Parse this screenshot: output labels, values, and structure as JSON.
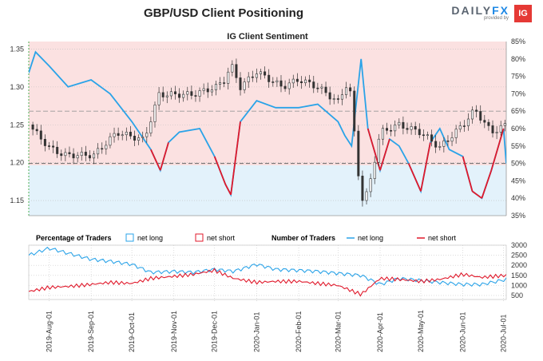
{
  "title": "GBP/USD Client Positioning",
  "logo": {
    "brand_prefix": "DAILY",
    "brand_suffix": "FX",
    "subtitle": "provided by",
    "mark": "IG"
  },
  "colors": {
    "blue": "#2aa3e8",
    "red": "#e0192b",
    "candle": "#333333",
    "long_bg": "#e3f2fb",
    "short_bg": "#fbe1e1"
  },
  "chart_data": [
    {
      "type": "line",
      "title": "IG Client Sentiment",
      "ylabel_left_ticks": [
        "1.35",
        "1.30",
        "1.25",
        "1.20",
        "1.15"
      ],
      "ylim_left": [
        1.13,
        1.36
      ],
      "ylabel_right_ticks": [
        "85%",
        "80%",
        "75%",
        "70%",
        "65%",
        "60%",
        "55%",
        "50%",
        "45%",
        "40%",
        "35%"
      ],
      "ylim_right": [
        35,
        85
      ],
      "x_range": [
        "2019-07-17",
        "2020-07-03"
      ],
      "neutral_line": 50,
      "series": [
        {
          "name": "GBP/USD",
          "dates": [
            "2019-07-17",
            "2019-08-01",
            "2019-08-12",
            "2019-09-03",
            "2019-09-20",
            "2019-10-10",
            "2019-10-21",
            "2019-11-01",
            "2019-11-15",
            "2019-12-02",
            "2019-12-09",
            "2019-12-13",
            "2019-12-20",
            "2020-01-01",
            "2020-01-20",
            "2020-02-01",
            "2020-02-15",
            "2020-03-01",
            "2020-03-09",
            "2020-03-18",
            "2020-03-23",
            "2020-04-01",
            "2020-04-15",
            "2020-05-01",
            "2020-05-15",
            "2020-06-01",
            "2020-06-10",
            "2020-06-22",
            "2020-07-03"
          ],
          "values": [
            1.25,
            1.22,
            1.21,
            1.21,
            1.24,
            1.23,
            1.29,
            1.29,
            1.29,
            1.3,
            1.31,
            1.33,
            1.3,
            1.32,
            1.3,
            1.31,
            1.3,
            1.28,
            1.31,
            1.15,
            1.16,
            1.24,
            1.25,
            1.24,
            1.22,
            1.25,
            1.27,
            1.24,
            1.25
          ]
        },
        {
          "name": "Net long %",
          "dates": [
            "2019-07-17",
            "2019-07-22",
            "2019-08-01",
            "2019-08-15",
            "2019-09-01",
            "2019-09-15",
            "2019-10-01",
            "2019-10-15",
            "2019-10-22",
            "2019-10-28",
            "2019-11-05",
            "2019-11-20",
            "2019-12-01",
            "2019-12-09",
            "2019-12-13",
            "2019-12-20",
            "2020-01-01",
            "2020-01-15",
            "2020-02-01",
            "2020-02-15",
            "2020-03-01",
            "2020-03-06",
            "2020-03-11",
            "2020-03-18",
            "2020-03-23",
            "2020-04-01",
            "2020-04-08",
            "2020-04-15",
            "2020-04-22",
            "2020-05-01",
            "2020-05-08",
            "2020-05-15",
            "2020-05-22",
            "2020-06-01",
            "2020-06-08",
            "2020-06-15",
            "2020-06-22",
            "2020-07-01",
            "2020-07-03"
          ],
          "values": [
            76,
            82,
            78,
            72,
            74,
            70,
            62,
            54,
            48,
            56,
            59,
            60,
            52,
            44,
            41,
            62,
            68,
            66,
            66,
            67,
            62,
            58,
            55,
            80,
            60,
            48,
            57,
            55,
            50,
            42,
            56,
            60,
            54,
            52,
            42,
            40,
            48,
            60,
            50
          ]
        }
      ],
      "marked_short_dates": [
        "2019-10-22",
        "2019-12-13",
        "2020-04-01",
        "2020-05-01",
        "2020-06-08",
        "2020-06-15"
      ]
    },
    {
      "type": "line",
      "title": "Percentage of Traders / Number of Traders",
      "legend": {
        "pct_label": "Percentage of Traders",
        "pct_long": "net long",
        "pct_short": "net short",
        "num_label": "Number of Traders",
        "num_long": "net long",
        "num_short": "net short"
      },
      "ylabel_right_ticks": [
        "3000",
        "2500",
        "2000",
        "1500",
        "1000",
        "500"
      ],
      "ylim_right": [
        300,
        3000
      ],
      "x_ticks": [
        "2019-Aug-01",
        "2019-Sep-01",
        "2019-Oct-01",
        "2019-Nov-01",
        "2019-Dec-01",
        "2020-Jan-01",
        "2020-Feb-01",
        "2020-Mar-01",
        "2020-Apr-01",
        "2020-May-01",
        "2020-Jun-01",
        "2020-Jul-01"
      ],
      "x_tick_dates": [
        "2019-08-01",
        "2019-09-01",
        "2019-10-01",
        "2019-11-01",
        "2019-12-01",
        "2020-01-01",
        "2020-02-01",
        "2020-03-01",
        "2020-04-01",
        "2020-05-01",
        "2020-06-01",
        "2020-07-01"
      ],
      "series": [
        {
          "name": "net long",
          "dates": [
            "2019-07-17",
            "2019-08-01",
            "2019-08-15",
            "2019-09-01",
            "2019-09-15",
            "2019-10-01",
            "2019-10-15",
            "2019-11-01",
            "2019-11-15",
            "2019-12-01",
            "2019-12-15",
            "2020-01-01",
            "2020-01-15",
            "2020-02-01",
            "2020-02-15",
            "2020-03-01",
            "2020-03-18",
            "2020-04-01",
            "2020-04-15",
            "2020-05-01",
            "2020-05-15",
            "2020-06-01",
            "2020-06-15",
            "2020-07-03"
          ],
          "values": [
            2500,
            2850,
            2600,
            2300,
            2200,
            2050,
            1650,
            1700,
            1650,
            1800,
            1700,
            2050,
            1800,
            1750,
            1700,
            1600,
            1500,
            1050,
            1350,
            1250,
            1150,
            1050,
            1050,
            1300
          ]
        },
        {
          "name": "net short",
          "dates": [
            "2019-07-17",
            "2019-08-01",
            "2019-08-15",
            "2019-09-01",
            "2019-09-15",
            "2019-10-01",
            "2019-10-15",
            "2019-11-01",
            "2019-11-15",
            "2019-12-01",
            "2019-12-15",
            "2020-01-01",
            "2020-01-15",
            "2020-02-01",
            "2020-02-15",
            "2020-03-01",
            "2020-03-18",
            "2020-04-01",
            "2020-04-15",
            "2020-05-01",
            "2020-05-15",
            "2020-06-01",
            "2020-06-15",
            "2020-07-03"
          ],
          "values": [
            700,
            900,
            950,
            1050,
            1150,
            1100,
            1350,
            1450,
            1550,
            1750,
            1350,
            1150,
            1200,
            1200,
            1100,
            1000,
            550,
            1350,
            1300,
            1200,
            1300,
            1550,
            1400,
            1500
          ]
        }
      ]
    }
  ]
}
